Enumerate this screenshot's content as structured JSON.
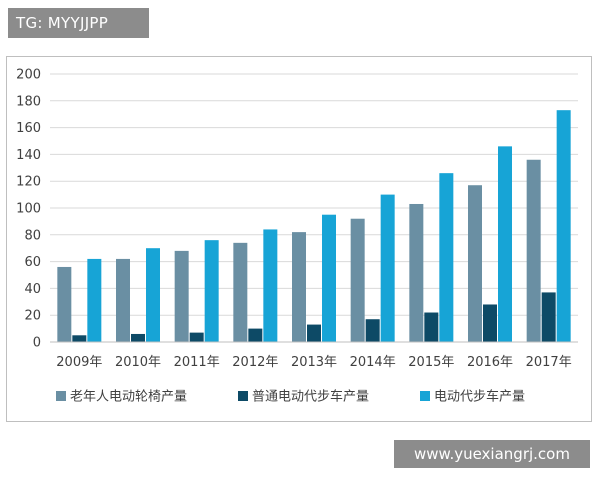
{
  "tag": {
    "text": "TG: MYYJJPP"
  },
  "watermark": {
    "text": "www.yuexiangrj.com"
  },
  "chart_data": {
    "type": "bar",
    "title": "",
    "xlabel": "",
    "ylabel": "",
    "ylim": [
      0,
      200
    ],
    "yticks": [
      0,
      20,
      40,
      60,
      80,
      100,
      120,
      140,
      160,
      180,
      200
    ],
    "grid": true,
    "legend_position": "bottom",
    "categories": [
      "2009年",
      "2010年",
      "2011年",
      "2012年",
      "2013年",
      "2014年",
      "2015年",
      "2016年",
      "2017年"
    ],
    "series": [
      {
        "name": "老年人电动轮椅产量",
        "color": "#6a8fa3",
        "values": [
          56,
          62,
          68,
          74,
          82,
          92,
          103,
          117,
          136
        ]
      },
      {
        "name": "普通电动代步车产量",
        "color": "#0d4a66",
        "values": [
          5,
          6,
          7,
          10,
          13,
          17,
          22,
          28,
          37
        ]
      },
      {
        "name": "电动代步车产量",
        "color": "#17a4d6",
        "values": [
          62,
          70,
          76,
          84,
          95,
          110,
          126,
          146,
          173
        ]
      }
    ]
  }
}
